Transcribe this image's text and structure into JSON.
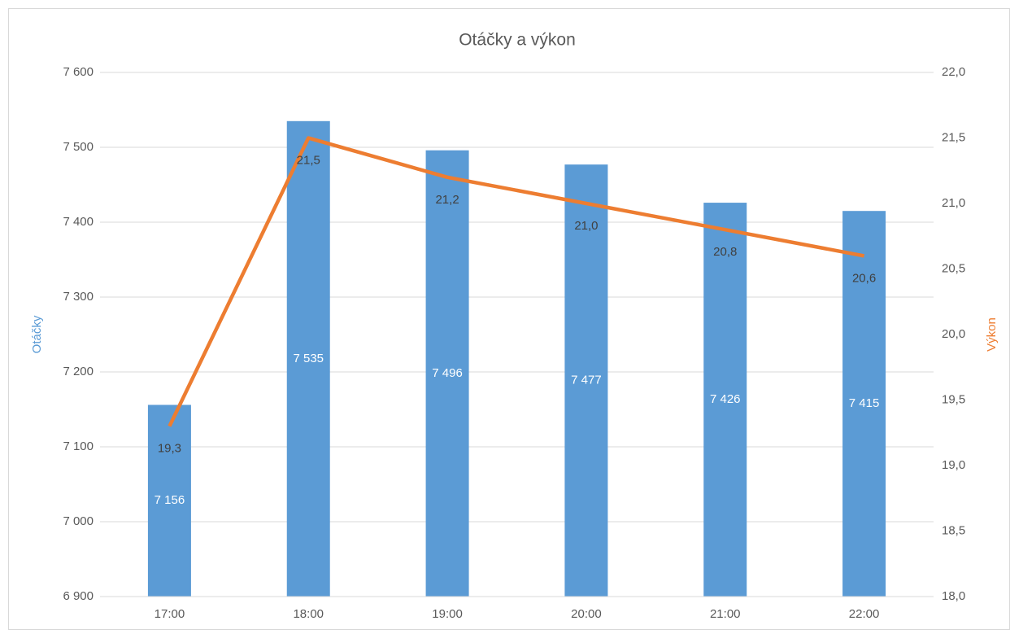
{
  "chart_data": {
    "type": "bar",
    "title": "Otáčky a výkon",
    "y_label": "Otáčky",
    "y2_label": "Výkon",
    "categories": [
      "17:00",
      "18:00",
      "19:00",
      "20:00",
      "21:00",
      "22:00"
    ],
    "series": [
      {
        "name": "Otáčky",
        "type": "bar",
        "color": "#5b9bd5",
        "values": [
          7156,
          7535,
          7496,
          7477,
          7426,
          7415
        ],
        "value_labels": [
          "7 156",
          "7 535",
          "7 496",
          "7 477",
          "7 426",
          "7 415"
        ]
      },
      {
        "name": "Výkon",
        "type": "line",
        "axis": "y2",
        "color": "#ed7d31",
        "values": [
          19.3,
          21.5,
          21.2,
          21.0,
          20.8,
          20.6
        ],
        "value_labels": [
          "19,3",
          "21,5",
          "21,2",
          "21,0",
          "20,8",
          "20,6"
        ]
      }
    ],
    "ylim": [
      6900,
      7600
    ],
    "yticks": [
      {
        "value": 6900,
        "label": "6 900"
      },
      {
        "value": 7000,
        "label": "7 000"
      },
      {
        "value": 7100,
        "label": "7 100"
      },
      {
        "value": 7200,
        "label": "7 200"
      },
      {
        "value": 7300,
        "label": "7 300"
      },
      {
        "value": 7400,
        "label": "7 400"
      },
      {
        "value": 7500,
        "label": "7 500"
      },
      {
        "value": 7600,
        "label": "7 600"
      }
    ],
    "y2lim": [
      18,
      22
    ],
    "y2ticks": [
      {
        "value": 18,
        "label": "18,0"
      },
      {
        "value": 18.5,
        "label": "18,5"
      },
      {
        "value": 19,
        "label": "19,0"
      },
      {
        "value": 19.5,
        "label": "19,5"
      },
      {
        "value": 20,
        "label": "20,0"
      },
      {
        "value": 20.5,
        "label": "20,5"
      },
      {
        "value": 21,
        "label": "21,0"
      },
      {
        "value": 21.5,
        "label": "21,5"
      },
      {
        "value": 22,
        "label": "22,0"
      }
    ],
    "grid": true
  }
}
